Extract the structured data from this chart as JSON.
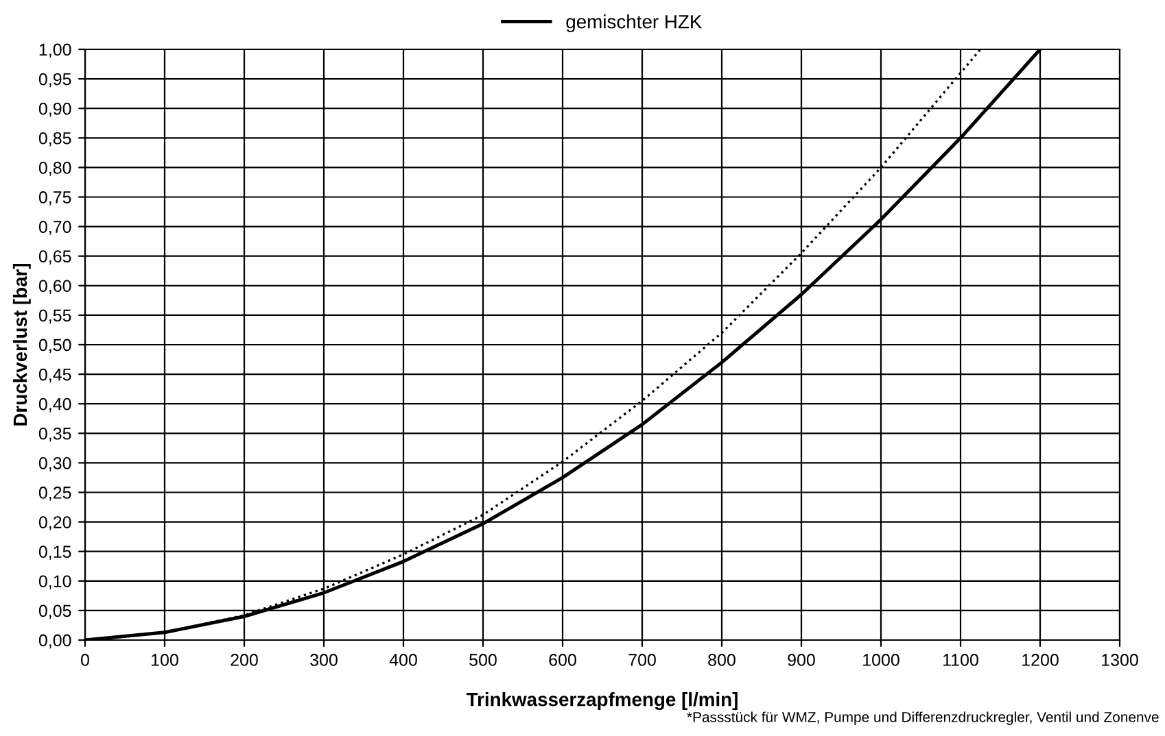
{
  "chart_data": {
    "type": "line",
    "xlabel": "Trinkwasserzapfmenge [l/min]",
    "ylabel": "Druckverlust [bar]",
    "annotations": [
      "*Passstück für WMZ, Pumpe und Differenzdruckregler, Ventil und Zonenve"
    ],
    "series": [
      {
        "name": "gemischter HZK",
        "color": "#000000",
        "line_style": "solid",
        "x": [
          0,
          100,
          200,
          300,
          400,
          500,
          600,
          700,
          800,
          900,
          1000,
          1100,
          1200
        ],
        "values": [
          0,
          0.013,
          0.04,
          0.08,
          0.133,
          0.197,
          0.275,
          0.365,
          0.47,
          0.585,
          0.712,
          0.85,
          1.0
        ]
      },
      {
        "color": "#000000",
        "line_style": "dotted",
        "x": [
          0,
          100,
          200,
          300,
          400,
          500,
          600,
          700,
          800,
          900,
          1000,
          1100,
          1125
        ],
        "values": [
          0,
          0.013,
          0.042,
          0.087,
          0.145,
          0.212,
          0.302,
          0.405,
          0.52,
          0.655,
          0.8,
          0.96,
          1.0
        ]
      }
    ],
    "xlim": [
      0,
      1300
    ],
    "xticks": [
      0,
      100,
      200,
      300,
      400,
      500,
      600,
      700,
      800,
      900,
      1000,
      1100,
      1200,
      1300
    ],
    "ylim": [
      0,
      1
    ],
    "yticks": [
      {
        "value": 0,
        "label": "0,00"
      },
      {
        "value": 0.05,
        "label": "0,05"
      },
      {
        "value": 0.1,
        "label": "0,10"
      },
      {
        "value": 0.15,
        "label": "0,15"
      },
      {
        "value": 0.2,
        "label": "0,20"
      },
      {
        "value": 0.25,
        "label": "0,25"
      },
      {
        "value": 0.3,
        "label": "0,30"
      },
      {
        "value": 0.35,
        "label": "0,35"
      },
      {
        "value": 0.4,
        "label": "0,40"
      },
      {
        "value": 0.45,
        "label": "0,45"
      },
      {
        "value": 0.5,
        "label": "0,50"
      },
      {
        "value": 0.55,
        "label": "0,55"
      },
      {
        "value": 0.6,
        "label": "0,60"
      },
      {
        "value": 0.65,
        "label": "0,65"
      },
      {
        "value": 0.7,
        "label": "0,70"
      },
      {
        "value": 0.75,
        "label": "0,75"
      },
      {
        "value": 0.8,
        "label": "0,80"
      },
      {
        "value": 0.85,
        "label": "0,85"
      },
      {
        "value": 0.9,
        "label": "0,90"
      },
      {
        "value": 0.95,
        "label": "0,95"
      },
      {
        "value": 1,
        "label": "1,00"
      }
    ],
    "grid": true,
    "legend": "top",
    "marker": "none"
  }
}
